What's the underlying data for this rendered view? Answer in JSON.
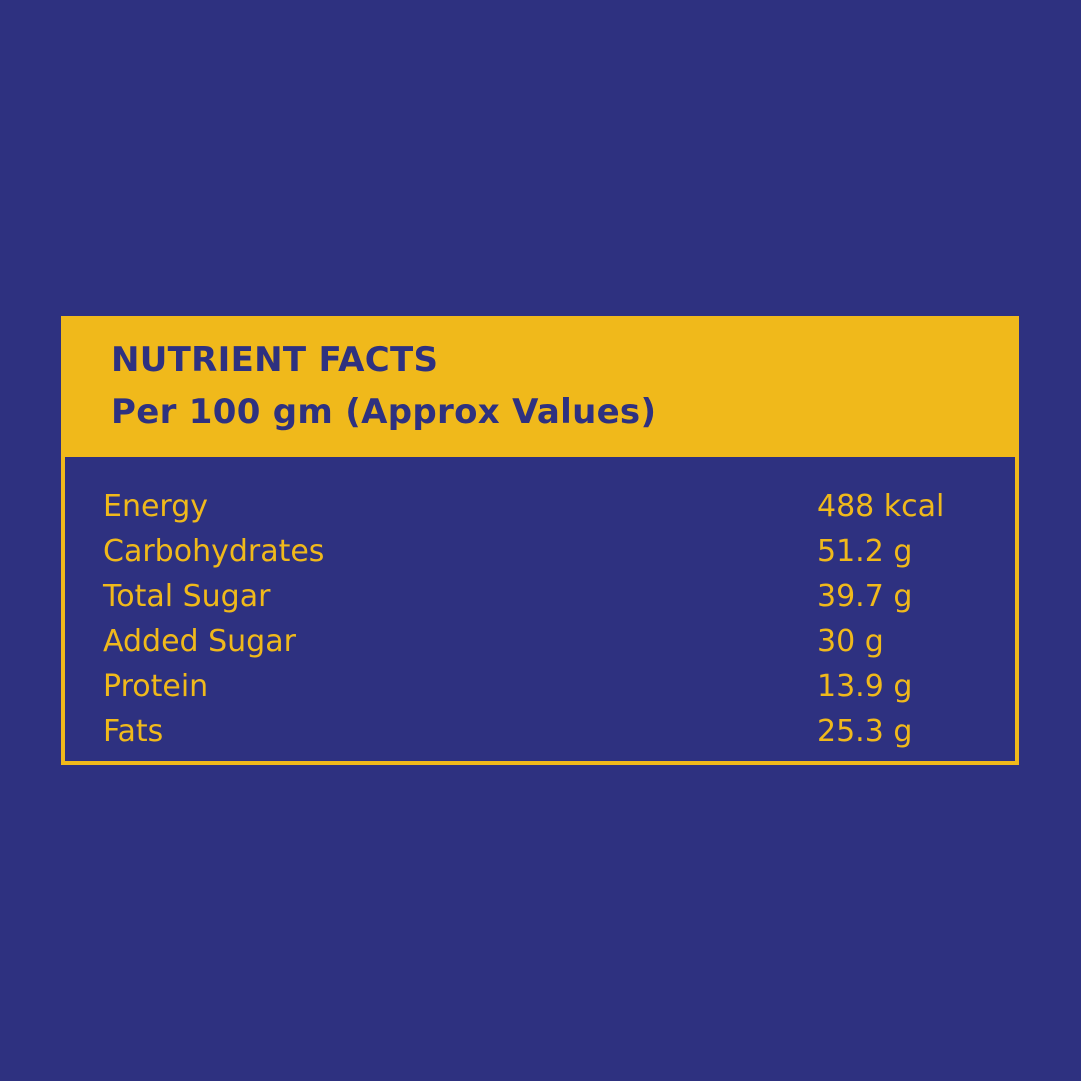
{
  "colors": {
    "background": "#2e3180",
    "accent": "#f0b91b"
  },
  "header": {
    "title": "NUTRIENT FACTS",
    "subtitle": "Per 100 gm (Approx Values)"
  },
  "rows": [
    {
      "label": "Energy",
      "value": "488 kcal"
    },
    {
      "label": "Carbohydrates",
      "value": "51.2 g"
    },
    {
      "label": "Total Sugar",
      "value": "39.7 g"
    },
    {
      "label": "Added Sugar",
      "value": "30 g"
    },
    {
      "label": "Protein",
      "value": "13.9 g"
    },
    {
      "label": "Fats",
      "value": "25.3 g"
    }
  ]
}
